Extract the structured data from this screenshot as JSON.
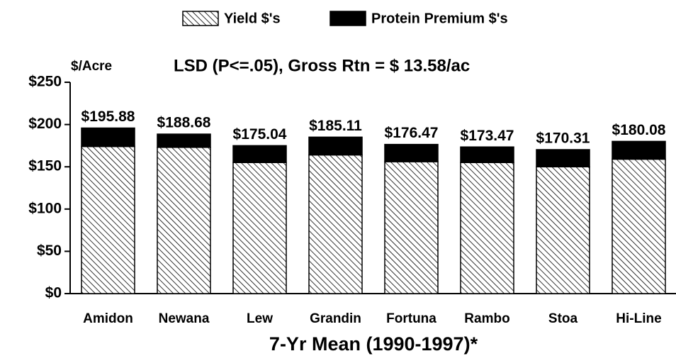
{
  "chart_data": {
    "type": "stacked-bar",
    "ylabel": "$/Acre",
    "annotation": "LSD (P<=.05), Gross Rtn = $ 13.58/ac",
    "xlabel": "7-Yr Mean (1990-1997)*",
    "categories": [
      "Amidon",
      "Newana",
      "Lew",
      "Grandin",
      "Fortuna",
      "Rambo",
      "Stoa",
      "Hi-Line"
    ],
    "series": [
      {
        "name": "Yield $'s",
        "color": "#000000",
        "hatch": true,
        "values": [
          174,
          173,
          155,
          164,
          156,
          155,
          150,
          159
        ]
      },
      {
        "name": "Protein Premium $'s",
        "color": "#000000",
        "hatch": false,
        "values": [
          21.88,
          15.68,
          20.04,
          21.11,
          20.47,
          18.47,
          20.31,
          21.08
        ]
      }
    ],
    "totals": [
      195.88,
      188.68,
      175.04,
      185.11,
      176.47,
      173.47,
      170.31,
      180.08
    ],
    "total_labels": [
      "$195.88",
      "$188.68",
      "$175.04",
      "$185.11",
      "$176.47",
      "$173.47",
      "$170.31",
      "$180.08"
    ],
    "ylim": [
      0,
      250
    ],
    "yticks": [
      {
        "value": 0,
        "label": "$0"
      },
      {
        "value": 50,
        "label": "$50"
      },
      {
        "value": 100,
        "label": "$100"
      },
      {
        "value": 150,
        "label": "$150"
      },
      {
        "value": 200,
        "label": "$200"
      },
      {
        "value": 250,
        "label": "$250"
      }
    ],
    "grid": false
  }
}
